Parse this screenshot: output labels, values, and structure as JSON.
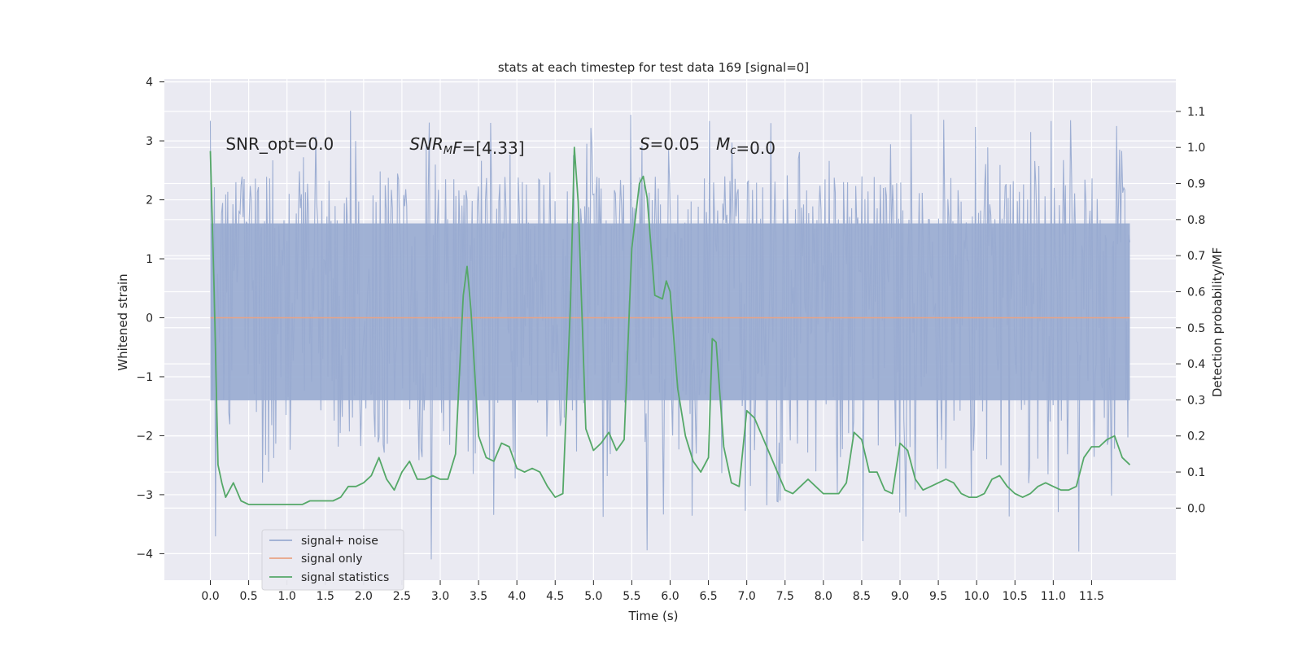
{
  "chart_data": {
    "type": "line",
    "title": "stats at each timestep for test data 169 [signal=0]",
    "xlabel": "Time (s)",
    "ylabel": "Whitened strain",
    "y2label": "Detection probability/MF",
    "xlim": [
      -0.6,
      12.6
    ],
    "ylim": [
      -4.45,
      4.05
    ],
    "y2lim": [
      -0.2,
      1.19
    ],
    "grid": true,
    "legend_position": "lower-left",
    "x_ticks": [
      0.0,
      0.5,
      1.0,
      1.5,
      2.0,
      2.5,
      3.0,
      3.5,
      4.0,
      4.5,
      5.0,
      5.5,
      6.0,
      6.5,
      7.0,
      7.5,
      8.0,
      8.5,
      9.0,
      9.5,
      10.0,
      10.5,
      11.0,
      11.5
    ],
    "x_tick_labels": [
      "0.0",
      "0.5",
      "1.0",
      "1.5",
      "2.0",
      "2.5",
      "3.0",
      "3.5",
      "4.0",
      "4.5",
      "5.0",
      "5.5",
      "6.0",
      "6.5",
      "7.0",
      "7.5",
      "8.0",
      "8.5",
      "9.0",
      "9.5",
      "10.0",
      "10.5",
      "11.0",
      "11.5"
    ],
    "y_ticks": [
      -4,
      -3,
      -2,
      -1,
      0,
      1,
      2,
      3,
      4
    ],
    "y_tick_labels": [
      "−4",
      "−3",
      "−2",
      "−1",
      "0",
      "1",
      "2",
      "3",
      "4"
    ],
    "y2_ticks": [
      0.0,
      0.1,
      0.2,
      0.3,
      0.4,
      0.5,
      0.6,
      0.7,
      0.8,
      0.9,
      1.0,
      1.1
    ],
    "y2_tick_labels": [
      "0.0",
      "0.1",
      "0.2",
      "0.3",
      "0.4",
      "0.5",
      "0.6",
      "0.7",
      "0.8",
      "0.9",
      "1.0",
      "1.1"
    ],
    "annotations": [
      {
        "id": "snr-opt",
        "x": 0.2,
        "y": 2.85,
        "parts": [
          {
            "text": "SNR_opt=0.0",
            "style": "normal"
          }
        ]
      },
      {
        "id": "snr-mf",
        "x": 2.6,
        "y": 2.85,
        "parts": [
          {
            "text": "SNR",
            "style": "italic"
          },
          {
            "text": "M",
            "style": "italic-sub"
          },
          {
            "text": "F",
            "style": "italic"
          },
          {
            "text": "=[4.33]",
            "style": "normal"
          }
        ]
      },
      {
        "id": "s-stat",
        "x": 5.6,
        "y": 2.85,
        "parts": [
          {
            "text": "S",
            "style": "italic"
          },
          {
            "text": "=0.05",
            "style": "normal"
          }
        ]
      },
      {
        "id": "mc",
        "x": 6.6,
        "y": 2.85,
        "parts": [
          {
            "text": "M",
            "style": "italic"
          },
          {
            "text": "c",
            "style": "italic-sub"
          },
          {
            "text": "=0.0",
            "style": "normal"
          }
        ]
      }
    ],
    "series": [
      {
        "name": "signal+ noise",
        "axis": "left",
        "color": "#99abd1",
        "kind": "noise",
        "duration": 12.0,
        "samples": 900,
        "core_band": [
          -1.4,
          1.6
        ],
        "extent_range": [
          -4.1,
          3.65
        ],
        "x_range": [
          0.0,
          12.0
        ]
      },
      {
        "name": "signal only",
        "axis": "left",
        "color": "#e9a384",
        "x": [
          0.0,
          12.0
        ],
        "y": [
          0.0,
          0.0
        ]
      },
      {
        "name": "signal statistics",
        "axis": "right",
        "color": "#55a868",
        "x": [
          0.0,
          0.05,
          0.1,
          0.15,
          0.2,
          0.3,
          0.4,
          0.5,
          0.6,
          0.7,
          0.8,
          0.9,
          1.0,
          1.1,
          1.2,
          1.3,
          1.4,
          1.5,
          1.6,
          1.7,
          1.8,
          1.9,
          2.0,
          2.1,
          2.2,
          2.3,
          2.4,
          2.5,
          2.6,
          2.7,
          2.8,
          2.9,
          3.0,
          3.1,
          3.2,
          3.3,
          3.35,
          3.4,
          3.5,
          3.6,
          3.7,
          3.8,
          3.9,
          4.0,
          4.1,
          4.2,
          4.3,
          4.4,
          4.5,
          4.6,
          4.7,
          4.75,
          4.8,
          4.9,
          5.0,
          5.1,
          5.2,
          5.3,
          5.4,
          5.5,
          5.6,
          5.65,
          5.7,
          5.8,
          5.9,
          5.95,
          6.0,
          6.1,
          6.2,
          6.3,
          6.4,
          6.5,
          6.55,
          6.6,
          6.7,
          6.8,
          6.9,
          7.0,
          7.1,
          7.2,
          7.3,
          7.4,
          7.5,
          7.6,
          7.7,
          7.8,
          7.9,
          8.0,
          8.1,
          8.2,
          8.3,
          8.4,
          8.5,
          8.6,
          8.7,
          8.8,
          8.9,
          9.0,
          9.1,
          9.2,
          9.3,
          9.4,
          9.5,
          9.6,
          9.7,
          9.8,
          9.9,
          10.0,
          10.1,
          10.2,
          10.3,
          10.4,
          10.5,
          10.6,
          10.7,
          10.8,
          10.9,
          11.0,
          11.1,
          11.2,
          11.3,
          11.4,
          11.5,
          11.6,
          11.7,
          11.8,
          11.9,
          12.0
        ],
        "y": [
          0.99,
          0.6,
          0.12,
          0.07,
          0.03,
          0.07,
          0.02,
          0.01,
          0.01,
          0.01,
          0.01,
          0.01,
          0.01,
          0.01,
          0.01,
          0.02,
          0.02,
          0.02,
          0.02,
          0.03,
          0.06,
          0.06,
          0.07,
          0.09,
          0.14,
          0.08,
          0.05,
          0.1,
          0.13,
          0.08,
          0.08,
          0.09,
          0.08,
          0.08,
          0.15,
          0.59,
          0.67,
          0.55,
          0.2,
          0.14,
          0.13,
          0.18,
          0.17,
          0.11,
          0.1,
          0.11,
          0.1,
          0.06,
          0.03,
          0.04,
          0.57,
          1.0,
          0.85,
          0.22,
          0.16,
          0.18,
          0.21,
          0.16,
          0.19,
          0.72,
          0.9,
          0.92,
          0.86,
          0.59,
          0.58,
          0.63,
          0.6,
          0.33,
          0.2,
          0.13,
          0.1,
          0.14,
          0.47,
          0.46,
          0.17,
          0.07,
          0.06,
          0.27,
          0.25,
          0.2,
          0.15,
          0.1,
          0.05,
          0.04,
          0.06,
          0.08,
          0.06,
          0.04,
          0.04,
          0.04,
          0.07,
          0.21,
          0.19,
          0.1,
          0.1,
          0.05,
          0.04,
          0.18,
          0.16,
          0.08,
          0.05,
          0.06,
          0.07,
          0.08,
          0.07,
          0.04,
          0.03,
          0.03,
          0.04,
          0.08,
          0.09,
          0.06,
          0.04,
          0.03,
          0.04,
          0.06,
          0.07,
          0.06,
          0.05,
          0.05,
          0.06,
          0.14,
          0.17,
          0.17,
          0.19,
          0.2,
          0.14,
          0.12
        ]
      }
    ]
  }
}
